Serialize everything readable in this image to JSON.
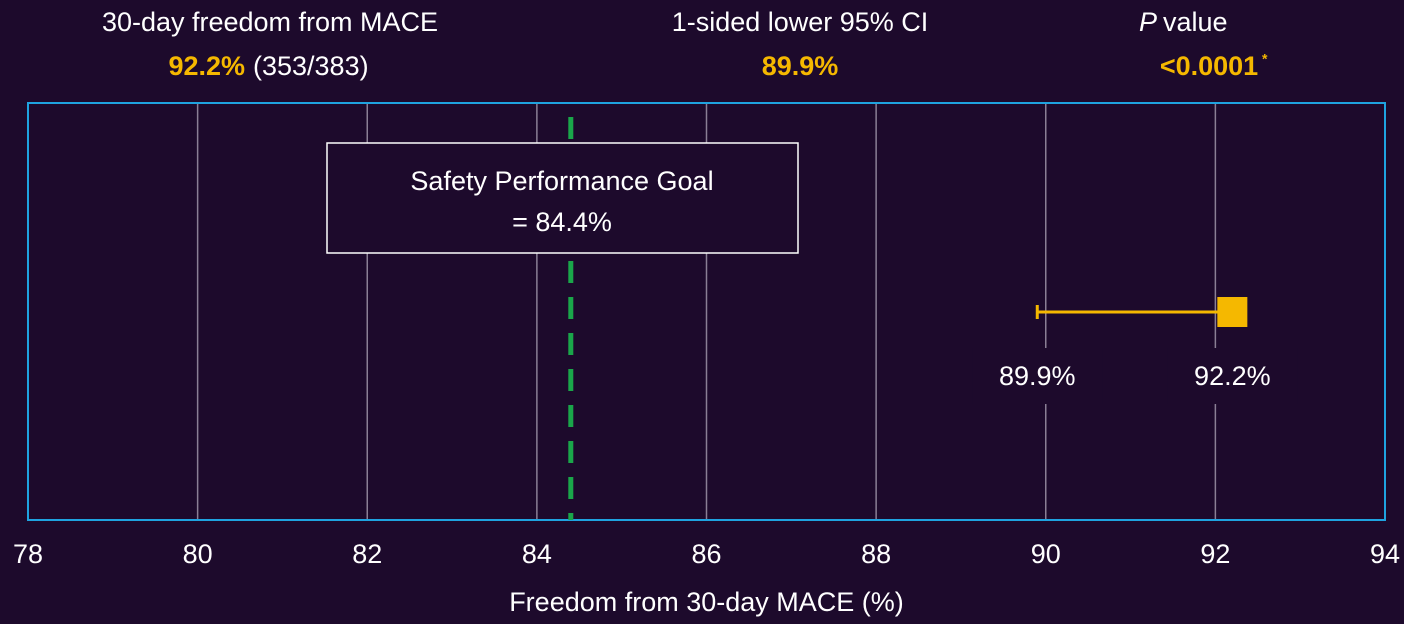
{
  "header": {
    "stats": [
      {
        "label": "30-day freedom from MACE",
        "value": "92.2%",
        "detail": "(353/383)"
      },
      {
        "label": "1-sided lower 95% CI",
        "value": "89.9%"
      },
      {
        "label_italic": "P",
        "label": "value",
        "value": "<0.0001",
        "footnote": "*"
      }
    ]
  },
  "chart_data": {
    "type": "forest",
    "xlabel": "Freedom from 30-day MACE (%)",
    "xlim": [
      78,
      94
    ],
    "xticks": [
      78,
      80,
      82,
      84,
      86,
      88,
      90,
      92,
      94
    ],
    "grid": true,
    "goal": {
      "value": 84.4,
      "label": "Safety Performance Goal",
      "value_label": "= 84.4%",
      "color": "#1aa64a"
    },
    "estimate": 92.2,
    "estimate_label": "92.2%",
    "ci_lower": 89.9,
    "ci_lower_label": "89.9%",
    "color": "#f5b800"
  }
}
